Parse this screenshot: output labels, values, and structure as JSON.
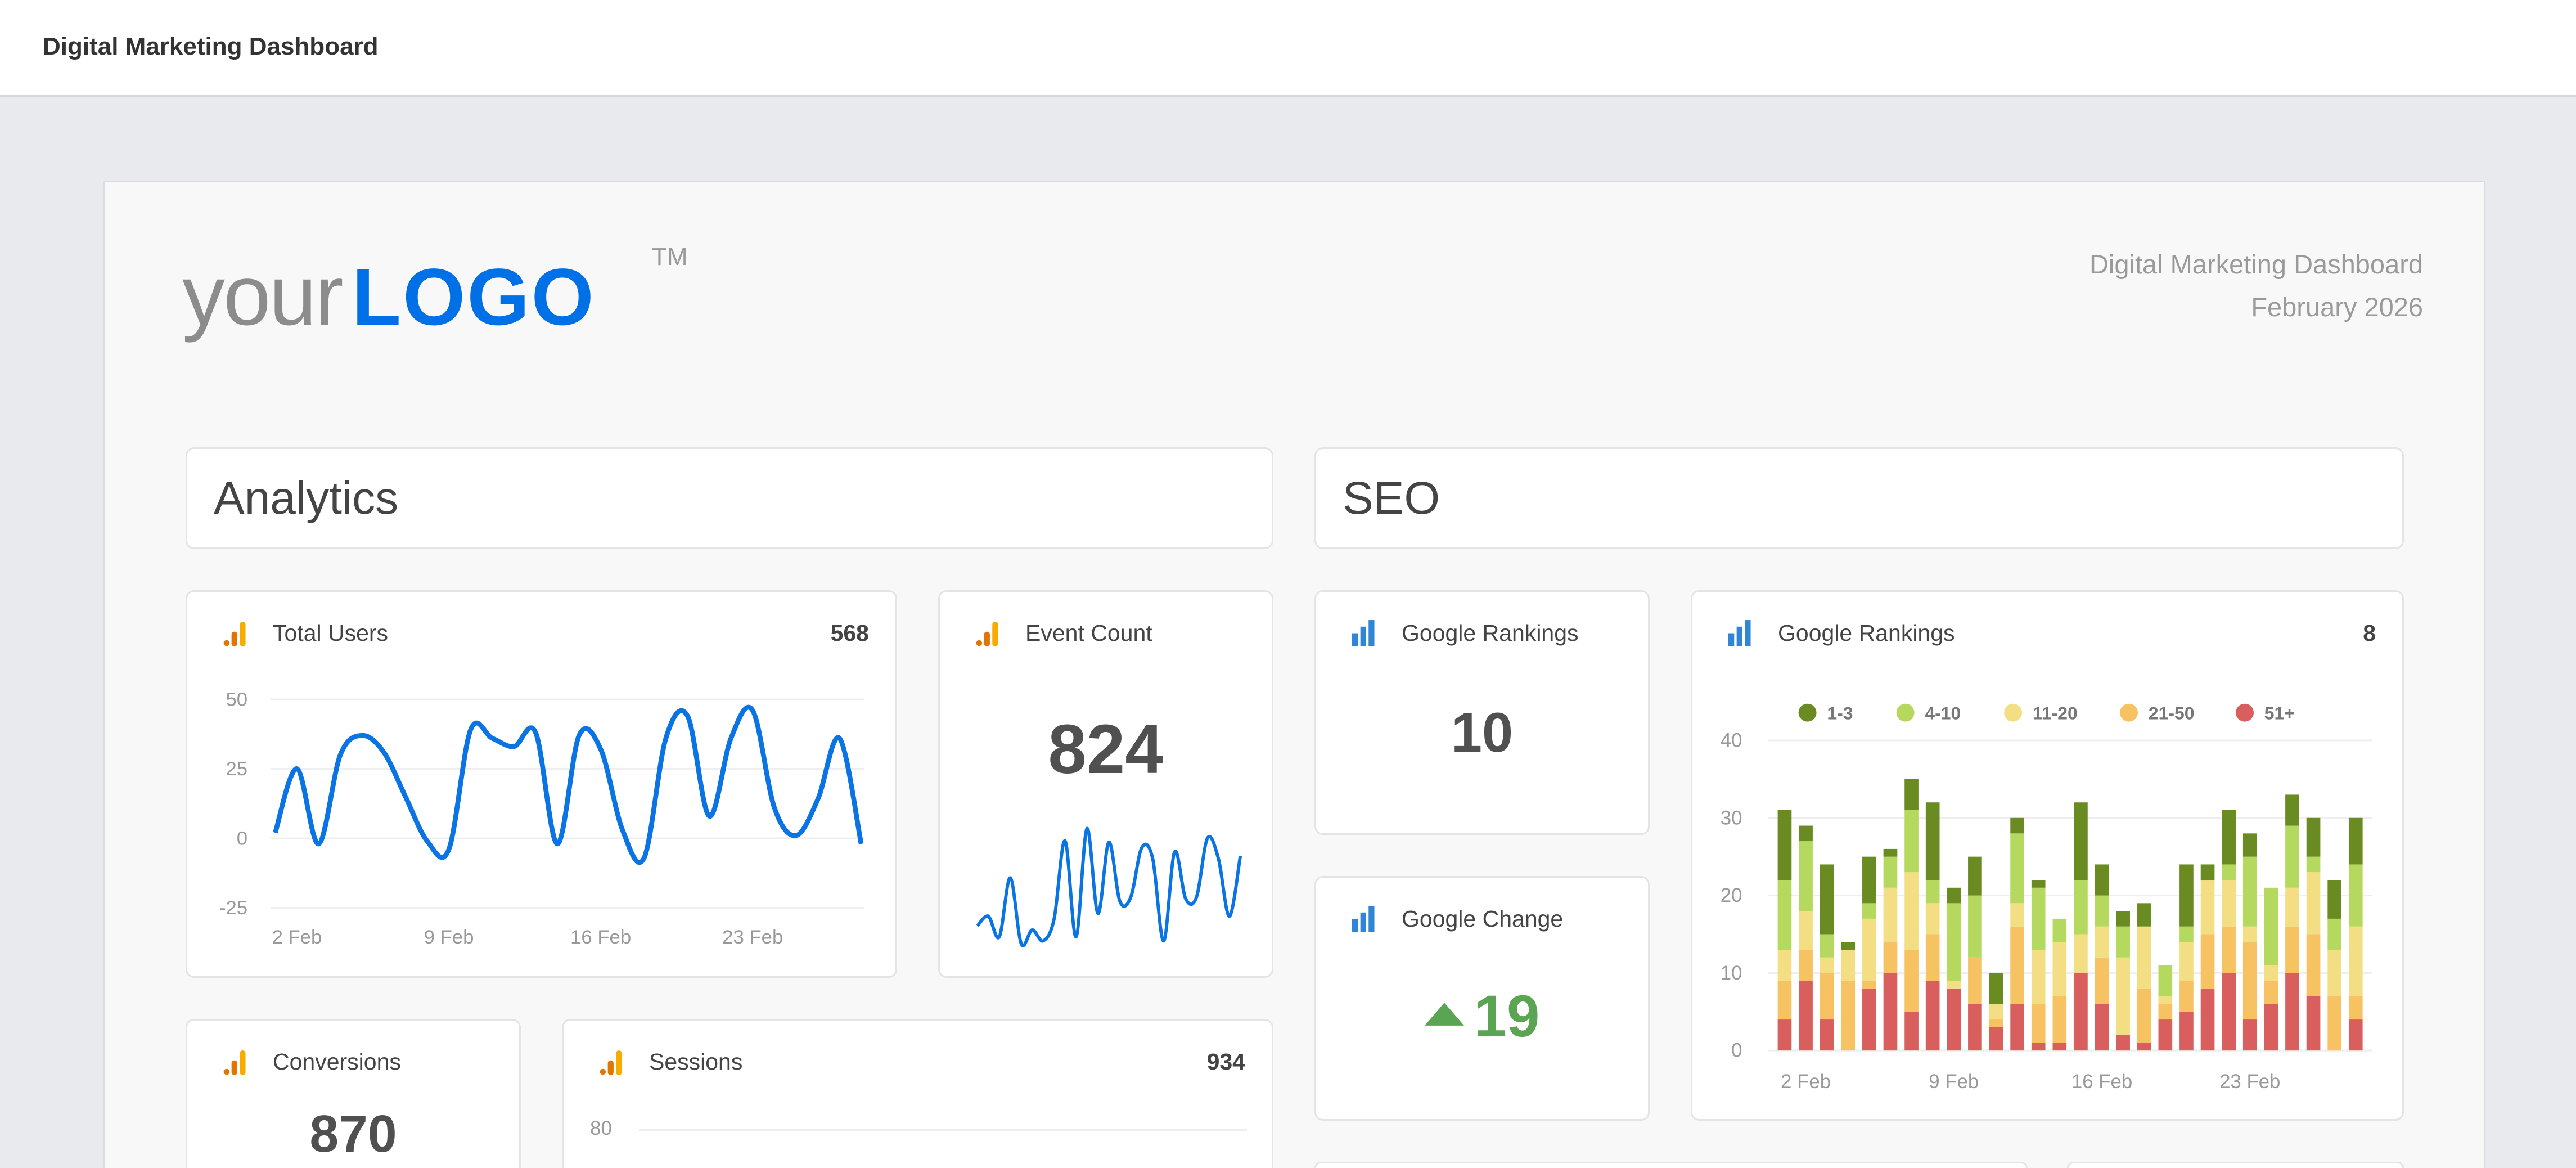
{
  "app": {
    "title": "Digital Marketing Dashboard"
  },
  "report": {
    "logo": {
      "text_light": "your",
      "text_bold": "LOGO",
      "tm": "TM",
      "color": "#0070e6"
    },
    "title": "Digital Marketing Dashboard",
    "period": "February 2026"
  },
  "sections": {
    "analytics": "Analytics",
    "seo": "SEO"
  },
  "cards": {
    "total_users": {
      "title": "Total Users",
      "value": "568",
      "icon": "google-analytics-icon"
    },
    "event_count": {
      "title": "Event Count",
      "value": "824",
      "icon": "google-analytics-icon"
    },
    "conversions": {
      "title": "Conversions",
      "value": "870",
      "icon": "google-analytics-icon"
    },
    "sessions": {
      "title": "Sessions",
      "value": "934",
      "icon": "google-analytics-icon",
      "axis_top_label": "80"
    },
    "google_rankings": {
      "title": "Google Rankings",
      "value": "10",
      "icon": "rankings-bar-icon"
    },
    "google_change": {
      "title": "Google Change",
      "value": "19",
      "direction": "up",
      "color": "#5aa454",
      "icon": "triangle-up-icon"
    },
    "google_rankings_chart": {
      "title": "Google Rankings",
      "value": "8",
      "icon": "rankings-bar-icon"
    }
  },
  "chart_data": [
    {
      "id": "total_users",
      "type": "line",
      "x": [
        "1 Feb",
        "2 Feb",
        "3 Feb",
        "4 Feb",
        "5 Feb",
        "6 Feb",
        "7 Feb",
        "8 Feb",
        "9 Feb",
        "10 Feb",
        "11 Feb",
        "12 Feb",
        "13 Feb",
        "14 Feb",
        "15 Feb",
        "16 Feb",
        "17 Feb",
        "18 Feb",
        "19 Feb",
        "20 Feb",
        "21 Feb",
        "22 Feb",
        "23 Feb",
        "24 Feb",
        "25 Feb",
        "26 Feb",
        "27 Feb",
        "28 Feb"
      ],
      "values": [
        2,
        25,
        -2,
        30,
        37,
        31,
        15,
        -1,
        -4,
        39,
        36,
        33,
        38,
        -2,
        37,
        32,
        3,
        -7,
        36,
        44,
        8,
        36,
        46,
        11,
        1,
        14,
        36,
        -2
      ],
      "ylim": [
        -25,
        50
      ],
      "yticks": [
        "50",
        "25",
        "0",
        "-25"
      ],
      "xticks": [
        "2 Feb",
        "9 Feb",
        "16 Feb",
        "23 Feb"
      ],
      "color": "#0b74e5",
      "grid": true
    },
    {
      "id": "event_count_sparkline",
      "type": "line",
      "values": [
        75,
        110,
        35,
        250,
        10,
        60,
        20,
        100,
        385,
        35,
        430,
        120,
        380,
        165,
        180,
        360,
        320,
        20,
        345,
        175,
        180,
        395,
        320,
        110,
        330
      ],
      "color": "#0b74e5",
      "grid": false
    },
    {
      "id": "google_rankings",
      "type": "bar",
      "stacked": true,
      "x": [
        "1 Feb",
        "2 Feb",
        "3 Feb",
        "4 Feb",
        "5 Feb",
        "6 Feb",
        "7 Feb",
        "8 Feb",
        "9 Feb",
        "10 Feb",
        "11 Feb",
        "12 Feb",
        "13 Feb",
        "14 Feb",
        "15 Feb",
        "16 Feb",
        "17 Feb",
        "18 Feb",
        "19 Feb",
        "20 Feb",
        "21 Feb",
        "22 Feb",
        "23 Feb",
        "24 Feb",
        "25 Feb",
        "26 Feb",
        "27 Feb",
        "28 Feb"
      ],
      "series": [
        {
          "name": "51+",
          "color": "#d95f5f",
          "values": [
            4,
            9,
            4,
            0,
            8,
            10,
            5,
            9,
            8,
            6,
            3,
            6,
            1,
            1,
            10,
            6,
            2,
            1,
            4,
            5,
            8,
            10,
            4,
            6,
            10,
            7,
            0,
            4
          ]
        },
        {
          "name": "21-50",
          "color": "#f7c262",
          "values": [
            5,
            4,
            6,
            9,
            1,
            4,
            8,
            6,
            0,
            6,
            1,
            10,
            5,
            6,
            0,
            6,
            0,
            7,
            2,
            4,
            7,
            6,
            10,
            3,
            6,
            8,
            7,
            3
          ]
        },
        {
          "name": "11-20",
          "color": "#f3de84",
          "values": [
            4,
            5,
            2,
            4,
            8,
            7,
            10,
            4,
            1,
            0,
            2,
            3,
            7,
            7,
            5,
            4,
            10,
            8,
            1,
            5,
            7,
            6,
            2,
            2,
            5,
            8,
            6,
            9
          ]
        },
        {
          "name": "4-10",
          "color": "#b5d95f",
          "values": [
            9,
            9,
            3,
            0,
            2,
            4,
            8,
            3,
            10,
            8,
            0,
            9,
            8,
            3,
            7,
            4,
            4,
            0,
            4,
            2,
            0,
            2,
            9,
            10,
            8,
            2,
            4,
            8
          ]
        },
        {
          "name": "1-3",
          "color": "#6a8a22",
          "values": [
            9,
            2,
            9,
            1,
            6,
            1,
            4,
            10,
            2,
            5,
            4,
            2,
            1,
            0,
            10,
            4,
            2,
            3,
            0,
            8,
            2,
            7,
            3,
            0,
            4,
            5,
            5,
            6
          ]
        }
      ],
      "legend_order": [
        "1-3",
        "4-10",
        "11-20",
        "21-50",
        "51+"
      ],
      "legend_position": "top",
      "ylim": [
        0,
        40
      ],
      "yticks": [
        "40",
        "30",
        "20",
        "10",
        "0"
      ],
      "xticks": [
        "2 Feb",
        "9 Feb",
        "16 Feb",
        "23 Feb"
      ],
      "grid": true
    }
  ]
}
